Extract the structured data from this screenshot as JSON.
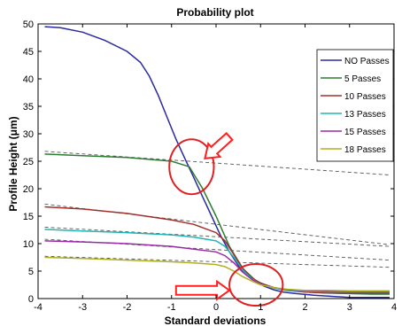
{
  "chart_data": {
    "type": "line",
    "title": "Probability plot",
    "xlabel": "Standard deviations",
    "ylabel": "Profile Height (μm)",
    "xlim": [
      -4,
      4
    ],
    "ylim": [
      0,
      50
    ],
    "x_ticks": [
      "-4",
      "-3",
      "-2",
      "-1",
      "0",
      "1",
      "2",
      "3",
      "4"
    ],
    "y_ticks": [
      "0",
      "5",
      "10",
      "15",
      "20",
      "25",
      "30",
      "35",
      "40",
      "45",
      "50"
    ],
    "grid": false,
    "legend_position": "top-right",
    "series": [
      {
        "name": "NO Passes",
        "color": "#2a2aa0",
        "x": [
          -3.85,
          -3.5,
          -3.0,
          -2.5,
          -2.0,
          -1.7,
          -1.5,
          -1.3,
          -1.1,
          -0.9,
          -0.7,
          -0.5,
          -0.3,
          -0.1,
          0.1,
          0.3,
          0.5,
          0.7,
          0.9,
          1.1,
          1.3,
          1.5,
          1.8,
          2.2,
          2.6,
          3.0,
          3.5,
          3.9
        ],
        "y": [
          49.5,
          49.3,
          48.5,
          47.0,
          45.0,
          43.0,
          40.5,
          37.0,
          33.0,
          29.0,
          25.5,
          22.0,
          18.5,
          15.0,
          11.5,
          8.5,
          6.0,
          4.2,
          3.0,
          2.2,
          1.6,
          1.2,
          0.9,
          0.6,
          0.4,
          0.2,
          0.2,
          0.2
        ]
      },
      {
        "name": "5 Passes",
        "color": "#2e7d32",
        "x": [
          -3.85,
          -3.0,
          -2.0,
          -1.0,
          -0.6,
          -0.3,
          0.0,
          0.3,
          0.6,
          0.9,
          1.2,
          1.5,
          2.0,
          2.5,
          3.0,
          3.5,
          3.9
        ],
        "y": [
          26.3,
          26.0,
          25.7,
          25.0,
          24.0,
          20.0,
          15.0,
          9.5,
          5.5,
          3.2,
          2.2,
          1.6,
          1.2,
          1.0,
          0.9,
          0.8,
          0.8
        ]
      },
      {
        "name": "10 Passes",
        "color": "#a0302a",
        "x": [
          -3.85,
          -3.0,
          -2.0,
          -1.0,
          -0.5,
          0.0,
          0.2,
          0.4,
          0.6,
          0.8,
          1.0,
          1.3,
          1.6,
          2.0,
          2.5,
          3.0,
          3.5,
          3.9
        ],
        "y": [
          16.7,
          16.3,
          15.5,
          14.3,
          13.5,
          12.0,
          10.5,
          8.0,
          5.5,
          3.8,
          2.8,
          2.0,
          1.5,
          1.2,
          1.0,
          1.0,
          1.0,
          1.0
        ]
      },
      {
        "name": "13 Passes",
        "color": "#22b5b5",
        "x": [
          -3.85,
          -3.0,
          -2.0,
          -1.0,
          -0.5,
          0.0,
          0.2,
          0.4,
          0.6,
          0.8,
          1.0,
          1.3,
          1.6,
          2.0,
          2.5,
          3.0,
          3.5,
          3.9
        ],
        "y": [
          12.6,
          12.3,
          12.0,
          11.6,
          11.2,
          10.5,
          9.5,
          7.5,
          5.2,
          3.6,
          2.6,
          1.9,
          1.5,
          1.3,
          1.2,
          1.2,
          1.2,
          1.2
        ]
      },
      {
        "name": "15 Passes",
        "color": "#9b2aa8",
        "x": [
          -3.85,
          -3.0,
          -2.0,
          -1.0,
          -0.5,
          0.0,
          0.2,
          0.4,
          0.6,
          0.8,
          1.0,
          1.3,
          1.6,
          2.0,
          2.5,
          3.0,
          3.5,
          3.9
        ],
        "y": [
          10.5,
          10.3,
          10.0,
          9.5,
          9.0,
          8.5,
          7.8,
          6.5,
          4.8,
          3.5,
          2.6,
          2.0,
          1.6,
          1.4,
          1.3,
          1.3,
          1.3,
          1.3
        ]
      },
      {
        "name": "18 Passes",
        "color": "#b0b020",
        "x": [
          -3.85,
          -3.0,
          -2.0,
          -1.0,
          -0.5,
          0.0,
          0.2,
          0.4,
          0.6,
          0.8,
          1.0,
          1.3,
          1.6,
          2.0,
          2.5,
          3.0,
          3.5,
          3.9
        ],
        "y": [
          7.5,
          7.3,
          7.0,
          6.7,
          6.5,
          6.2,
          5.8,
          5.0,
          4.0,
          3.2,
          2.5,
          2.0,
          1.7,
          1.5,
          1.5,
          1.4,
          1.4,
          1.4
        ]
      }
    ],
    "fit_lines": [
      {
        "x": [
          -3.85,
          3.9
        ],
        "y": [
          26.8,
          22.5
        ]
      },
      {
        "x": [
          -3.85,
          3.9
        ],
        "y": [
          17.2,
          9.8
        ]
      },
      {
        "x": [
          -3.85,
          3.9
        ],
        "y": [
          13.0,
          9.5
        ]
      },
      {
        "x": [
          -3.85,
          3.9
        ],
        "y": [
          10.8,
          7.0
        ]
      },
      {
        "x": [
          -3.85,
          3.9
        ],
        "y": [
          7.7,
          5.7
        ]
      }
    ],
    "annotations": {
      "circles": [
        {
          "x": -0.55,
          "y": 24.0,
          "rx": 0.5,
          "ry": 5.0
        },
        {
          "x": 0.9,
          "y": 2.5,
          "rx": 0.6,
          "ry": 3.8
        }
      ],
      "arrows": [
        {
          "from": [
            0.3,
            29.5
          ],
          "to": [
            -0.25,
            25.5
          ],
          "color": "#ff2020"
        },
        {
          "from": [
            -0.9,
            1.5
          ],
          "to": [
            0.3,
            1.5
          ],
          "color": "#ff2020"
        }
      ],
      "circle_color": "#e02020"
    }
  }
}
